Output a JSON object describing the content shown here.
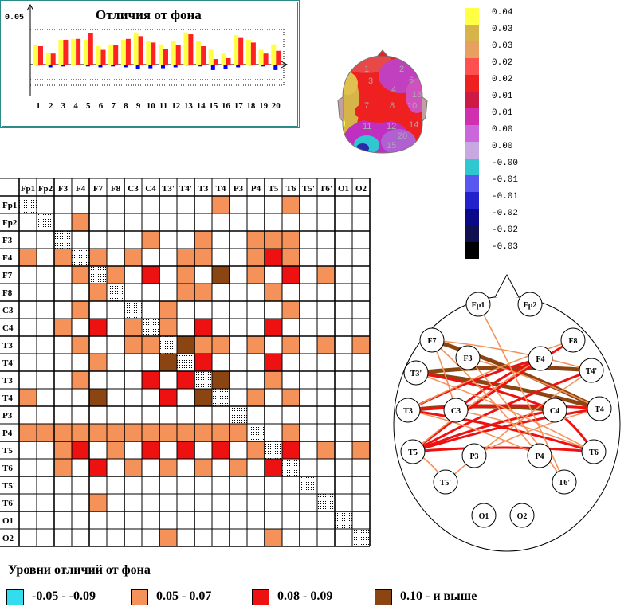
{
  "bar_chart": {
    "title": "Отличия от фона",
    "ytick": "0.05",
    "chart_data": {
      "type": "bar",
      "categories": [
        "1",
        "2",
        "3",
        "4",
        "5",
        "6",
        "7",
        "8",
        "9",
        "10",
        "11",
        "12",
        "13",
        "14",
        "15",
        "16",
        "17",
        "18",
        "19",
        "20"
      ],
      "series": [
        {
          "color": "#ffff44",
          "values": [
            0.021,
            0.013,
            0.027,
            0.028,
            0.027,
            0.02,
            0.022,
            0.027,
            0.035,
            0.026,
            0.022,
            0.026,
            0.035,
            0.026,
            0.016,
            0.012,
            0.032,
            0.027,
            0.016,
            0.022
          ]
        },
        {
          "color": "#ff2222",
          "values": [
            0.02,
            0.012,
            0.027,
            0.028,
            0.034,
            0.016,
            0.021,
            0.028,
            0.031,
            0.024,
            0.017,
            0.021,
            0.033,
            0.02,
            0.006,
            0.007,
            0.029,
            0.024,
            0.012,
            0.015
          ]
        },
        {
          "color": "#0000ff",
          "values": [
            -0.001,
            -0.003,
            -0.002,
            0,
            -0.002,
            -0.003,
            -0.002,
            -0.003,
            -0.005,
            -0.004,
            -0.004,
            -0.003,
            -0.001,
            -0.002,
            -0.006,
            -0.005,
            -0.003,
            -0.001,
            -0.002,
            -0.006
          ]
        }
      ]
    }
  },
  "scale": {
    "labels": [
      "0.04",
      "0.03",
      "0.03",
      "0.02",
      "0.02",
      "0.01",
      "0.01",
      "0.00",
      "0.00",
      "-0.00",
      "-0.01",
      "-0.01",
      "-0.02",
      "-0.02",
      "-0.03"
    ],
    "colors": [
      "#ffff44",
      "#d6b44a",
      "#e8a060",
      "#ff5050",
      "#ee2020",
      "#cc1a44",
      "#d030b0",
      "#cc66dd",
      "#c8a8e0",
      "#30c8d0",
      "#5858f0",
      "#2222cc",
      "#0a0a88",
      "#101050",
      "#000000"
    ]
  },
  "topomap": {
    "numbers": [
      "1",
      "2",
      "3",
      "6",
      "4",
      "18",
      "7",
      "8",
      "10",
      "11",
      "12",
      "14",
      "20",
      "15"
    ]
  },
  "matrix": {
    "channels": [
      "Fp1",
      "Fp2",
      "F3",
      "F4",
      "F7",
      "F8",
      "C3",
      "C4",
      "T3'",
      "T4'",
      "T3",
      "T4",
      "P3",
      "P4",
      "T5",
      "T6",
      "T5'",
      "T6'",
      "O1",
      "O2"
    ],
    "cells": [
      [
        0,
        11,
        1
      ],
      [
        0,
        15,
        1
      ],
      [
        1,
        3,
        1
      ],
      [
        2,
        7,
        1
      ],
      [
        2,
        10,
        1
      ],
      [
        2,
        13,
        1
      ],
      [
        2,
        14,
        1
      ],
      [
        2,
        15,
        1
      ],
      [
        3,
        0,
        1
      ],
      [
        3,
        2,
        1
      ],
      [
        3,
        4,
        1
      ],
      [
        3,
        6,
        1
      ],
      [
        3,
        9,
        1
      ],
      [
        3,
        10,
        1
      ],
      [
        3,
        13,
        1
      ],
      [
        3,
        14,
        2
      ],
      [
        3,
        15,
        1
      ],
      [
        4,
        3,
        1
      ],
      [
        4,
        5,
        1
      ],
      [
        4,
        7,
        2
      ],
      [
        4,
        9,
        1
      ],
      [
        4,
        11,
        3
      ],
      [
        4,
        13,
        1
      ],
      [
        4,
        15,
        2
      ],
      [
        4,
        17,
        1
      ],
      [
        5,
        4,
        1
      ],
      [
        5,
        9,
        1
      ],
      [
        5,
        10,
        1
      ],
      [
        5,
        14,
        1
      ],
      [
        6,
        3,
        1
      ],
      [
        6,
        8,
        1
      ],
      [
        6,
        15,
        1
      ],
      [
        7,
        2,
        1
      ],
      [
        7,
        4,
        2
      ],
      [
        7,
        6,
        1
      ],
      [
        7,
        8,
        1
      ],
      [
        7,
        10,
        2
      ],
      [
        7,
        14,
        2
      ],
      [
        8,
        3,
        1
      ],
      [
        8,
        6,
        1
      ],
      [
        8,
        7,
        1
      ],
      [
        8,
        9,
        3
      ],
      [
        8,
        10,
        1
      ],
      [
        8,
        11,
        1
      ],
      [
        8,
        13,
        1
      ],
      [
        8,
        15,
        1
      ],
      [
        8,
        17,
        1
      ],
      [
        8,
        19,
        1
      ],
      [
        9,
        4,
        1
      ],
      [
        9,
        8,
        3
      ],
      [
        9,
        10,
        2
      ],
      [
        9,
        14,
        2
      ],
      [
        10,
        3,
        1
      ],
      [
        10,
        7,
        2
      ],
      [
        10,
        9,
        2
      ],
      [
        10,
        11,
        3
      ],
      [
        10,
        14,
        1
      ],
      [
        11,
        0,
        1
      ],
      [
        11,
        4,
        3
      ],
      [
        11,
        8,
        2
      ],
      [
        11,
        10,
        3
      ],
      [
        11,
        13,
        1
      ],
      [
        11,
        15,
        1
      ],
      [
        13,
        0,
        1
      ],
      [
        13,
        1,
        1
      ],
      [
        13,
        2,
        1
      ],
      [
        13,
        3,
        1
      ],
      [
        13,
        4,
        1
      ],
      [
        13,
        5,
        1
      ],
      [
        13,
        6,
        1
      ],
      [
        13,
        7,
        1
      ],
      [
        13,
        8,
        1
      ],
      [
        13,
        9,
        1
      ],
      [
        13,
        10,
        1
      ],
      [
        13,
        11,
        1
      ],
      [
        13,
        12,
        1
      ],
      [
        13,
        15,
        1
      ],
      [
        14,
        2,
        1
      ],
      [
        14,
        3,
        2
      ],
      [
        14,
        5,
        1
      ],
      [
        14,
        7,
        2
      ],
      [
        14,
        9,
        2
      ],
      [
        14,
        11,
        2
      ],
      [
        14,
        13,
        1
      ],
      [
        14,
        15,
        2
      ],
      [
        14,
        17,
        1
      ],
      [
        14,
        19,
        1
      ],
      [
        15,
        2,
        1
      ],
      [
        15,
        4,
        2
      ],
      [
        15,
        6,
        1
      ],
      [
        15,
        8,
        1
      ],
      [
        15,
        10,
        1
      ],
      [
        15,
        12,
        1
      ],
      [
        15,
        14,
        2
      ],
      [
        17,
        4,
        1
      ],
      [
        19,
        8,
        1
      ],
      [
        19,
        14,
        1
      ]
    ]
  },
  "head": {
    "electrodes": [
      "Fp1",
      "Fp2",
      "F7",
      "F3",
      "F4",
      "F8",
      "T3'",
      "T4'",
      "T3",
      "C3",
      "C4",
      "T4",
      "T5",
      "P3",
      "P4",
      "T6",
      "T5'",
      "T6'",
      "O1",
      "O2"
    ],
    "edges": [
      [
        "F7",
        "T4",
        3
      ],
      [
        "T3'",
        "T4'",
        3
      ],
      [
        "T3",
        "C4",
        3
      ],
      [
        "T3'",
        "T4",
        3
      ],
      [
        "T5",
        "F8",
        2
      ],
      [
        "T5",
        "T4",
        2
      ],
      [
        "T3",
        "T4",
        2
      ],
      [
        "T3",
        "F4",
        2
      ],
      [
        "T5",
        "C4",
        2
      ],
      [
        "T5",
        "T6",
        2
      ],
      [
        "C4",
        "T6",
        2
      ],
      [
        "T3'",
        "C4",
        2
      ],
      [
        "T3",
        "T6",
        2
      ],
      [
        "C3",
        "F4",
        2
      ],
      [
        "T5",
        "T4'",
        2
      ],
      [
        "F7",
        "T4'",
        1
      ],
      [
        "Fp1",
        "T6'",
        1
      ],
      [
        "F3",
        "T6'",
        1
      ],
      [
        "T5",
        "F4",
        1
      ],
      [
        "P3",
        "T4",
        1
      ],
      [
        "P4",
        "T3",
        1
      ],
      [
        "T3",
        "F8",
        1
      ],
      [
        "F7",
        "P4",
        1
      ],
      [
        "T5'",
        "T4'",
        1
      ],
      [
        "F3",
        "T4",
        1
      ],
      [
        "C3",
        "T6",
        1
      ],
      [
        "T3'",
        "T6",
        1
      ],
      [
        "T5",
        "T5'",
        1
      ],
      [
        "F7",
        "C3",
        1
      ]
    ]
  },
  "legend": {
    "title": "Уровни  отличий  от фона",
    "items": [
      {
        "label": "-0.05 - -0.09",
        "color": "#33ddee"
      },
      {
        "label": "0.05 - 0.07",
        "color": "#f4925a"
      },
      {
        "label": "0.08 -  0.09",
        "color": "#ee1111"
      },
      {
        "label": "0.10 - и выше",
        "color": "#8b4513"
      }
    ]
  }
}
